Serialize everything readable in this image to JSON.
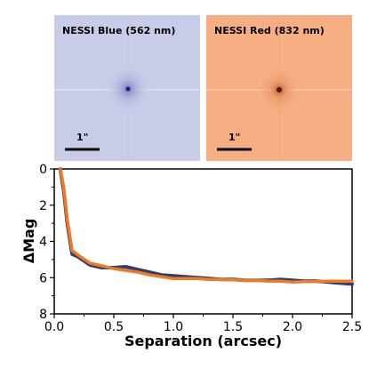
{
  "panels": [
    {
      "title": "NESSI Blue (562 nm)",
      "scale_label": "1\"",
      "color": "#c9cce8",
      "core_color": "#2a1f8a"
    },
    {
      "title": "NESSI Red (832 nm)",
      "scale_label": "1\"",
      "color": "#f6ae82",
      "core_color": "#4a1a08"
    }
  ],
  "chart_data": {
    "type": "line",
    "xlabel": "Separation (arcsec)",
    "ylabel": "ΔMag",
    "xlim": [
      0,
      2.5
    ],
    "ylim": [
      8,
      0
    ],
    "y_inverted": true,
    "xticks": [
      "0.0",
      "0.5",
      "1.0",
      "1.5",
      "2.0",
      "2.5"
    ],
    "yticks": [
      "0",
      "2",
      "4",
      "6",
      "8"
    ],
    "series": [
      {
        "color": "#2c3e73",
        "x": [
          0.05,
          0.08,
          0.11,
          0.15,
          0.2,
          0.3,
          0.4,
          0.5,
          0.6,
          0.7,
          0.8,
          0.9,
          1.0,
          1.1,
          1.2,
          1.3,
          1.4,
          1.5,
          1.6,
          1.7,
          1.8,
          1.9,
          2.0,
          2.1,
          2.2,
          2.3,
          2.4,
          2.5
        ],
        "y": [
          0.0,
          1.2,
          3.0,
          4.7,
          4.85,
          5.3,
          5.45,
          5.45,
          5.4,
          5.55,
          5.7,
          5.85,
          5.9,
          5.95,
          6.0,
          6.05,
          6.1,
          6.1,
          6.15,
          6.15,
          6.15,
          6.1,
          6.15,
          6.2,
          6.2,
          6.25,
          6.3,
          6.35
        ]
      },
      {
        "color": "#f07a22",
        "x": [
          0.05,
          0.08,
          0.11,
          0.15,
          0.2,
          0.3,
          0.4,
          0.5,
          0.6,
          0.7,
          0.8,
          0.9,
          1.0,
          1.1,
          1.2,
          1.3,
          1.4,
          1.5,
          1.6,
          1.7,
          1.8,
          1.9,
          2.0,
          2.1,
          2.2,
          2.3,
          2.4,
          2.5
        ],
        "y": [
          0.0,
          1.0,
          2.8,
          4.5,
          4.75,
          5.2,
          5.35,
          5.5,
          5.6,
          5.7,
          5.85,
          5.95,
          6.05,
          6.05,
          6.05,
          6.1,
          6.1,
          6.12,
          6.15,
          6.15,
          6.2,
          6.2,
          6.25,
          6.22,
          6.22,
          6.2,
          6.2,
          6.2
        ]
      }
    ]
  }
}
